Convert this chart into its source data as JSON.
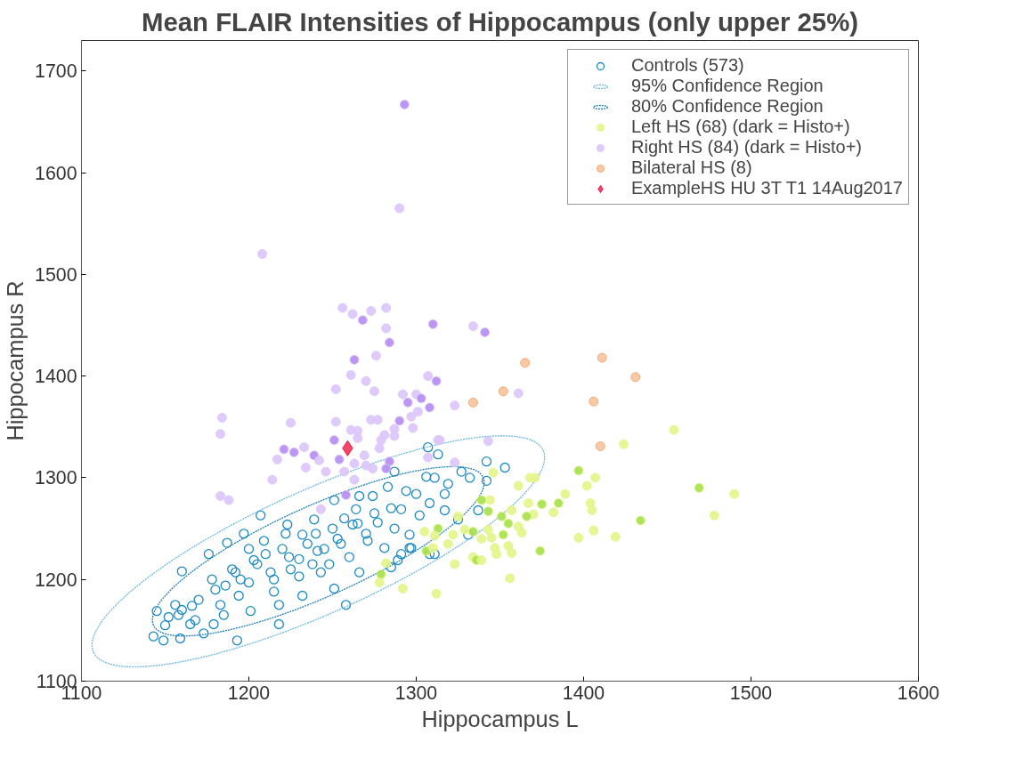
{
  "chart_data": {
    "type": "scatter",
    "title": "Mean FLAIR Intensities of Hippocampus (only upper 25%)",
    "xlabel": "Hippocampus L",
    "ylabel": "Hippocampus R",
    "xlim": [
      1100,
      1600
    ],
    "ylim": [
      1100,
      1730
    ],
    "xticks": [
      1100,
      1200,
      1300,
      1400,
      1500,
      1600
    ],
    "yticks": [
      1100,
      1200,
      1300,
      1400,
      1500,
      1600,
      1700
    ],
    "grid": false,
    "legend": "top right",
    "series": [
      {
        "name": "Controls (573)",
        "marker": "circle",
        "color": "#1b8ac4",
        "x": [
          1143,
          1149,
          1145,
          1152,
          1159,
          1160,
          1156,
          1166,
          1165,
          1173,
          1176,
          1179,
          1183,
          1186,
          1187,
          1193,
          1197,
          1192,
          1194,
          1201,
          1203,
          1200,
          1209,
          1213,
          1215,
          1218,
          1223,
          1224,
          1230,
          1232,
          1232,
          1239,
          1241,
          1243,
          1251,
          1251,
          1253,
          1260,
          1264,
          1266,
          1266,
          1271,
          1274,
          1277,
          1281,
          1283,
          1287,
          1287,
          1289,
          1291,
          1294,
          1296,
          1300,
          1302,
          1306,
          1308,
          1311,
          1311,
          1317,
          1319,
          1327,
          1332,
          1325,
          1331,
          1218,
          1285,
          1297,
          1258,
          1262,
          1207,
          1307,
          1313,
          1342,
          1353,
          1342,
          1337,
          1317,
          1308,
          1291,
          1296,
          1205,
          1210,
          1220,
          1225,
          1235,
          1245,
          1250,
          1215,
          1195,
          1180,
          1170,
          1160,
          1230,
          1240,
          1255,
          1265,
          1275,
          1200,
          1190,
          1178,
          1150,
          1158,
          1168,
          1185,
          1222,
          1238,
          1248,
          1270,
          1285,
          1257
        ],
        "values": [
          1144,
          1140,
          1169,
          1163,
          1142,
          1208,
          1175,
          1174,
          1156,
          1147,
          1225,
          1156,
          1175,
          1194,
          1236,
          1140,
          1245,
          1207,
          1184,
          1169,
          1219,
          1197,
          1238,
          1207,
          1188,
          1175,
          1254,
          1222,
          1203,
          1244,
          1184,
          1259,
          1228,
          1207,
          1191,
          1278,
          1240,
          1222,
          1269,
          1282,
          1207,
          1238,
          1282,
          1256,
          1231,
          1291,
          1306,
          1250,
          1219,
          1269,
          1287,
          1244,
          1284,
          1263,
          1301,
          1275,
          1300,
          1225,
          1284,
          1294,
          1306,
          1300,
          1259,
          1244,
          1156,
          1212,
          1231,
          1175,
          1254,
          1263,
          1330,
          1323,
          1316,
          1310,
          1297,
          1268,
          1268,
          1225,
          1225,
          1231,
          1215,
          1225,
          1230,
          1210,
          1235,
          1230,
          1250,
          1200,
          1200,
          1190,
          1180,
          1170,
          1220,
          1245,
          1235,
          1255,
          1265,
          1230,
          1210,
          1200,
          1155,
          1165,
          1160,
          1165,
          1245,
          1215,
          1215,
          1245,
          1270,
          1260
        ]
      },
      {
        "name": "95% Confidence Region",
        "type": "line",
        "line_style": "dotted",
        "color": "#6ab8e4"
      },
      {
        "name": "80% Confidence Region",
        "type": "line",
        "line_style": "dotted",
        "color": "#1b7fb8"
      },
      {
        "name": "Left HS (68) (dark = Histo+)",
        "marker": "circle",
        "color": "#e3f589",
        "x": [
          1346,
          1361,
          1368,
          1371,
          1397,
          1407,
          1402,
          1389,
          1385,
          1375,
          1367,
          1404,
          1405,
          1382,
          1370,
          1366,
          1351,
          1357,
          1355,
          1344,
          1339,
          1343,
          1325,
          1361,
          1363,
          1352,
          1343,
          1339,
          1345,
          1334,
          1329,
          1322,
          1313,
          1305,
          1311,
          1319,
          1306,
          1310,
          1347,
          1355,
          1357,
          1348,
          1334,
          1336,
          1339,
          1323,
          1374,
          1397,
          1406,
          1419,
          1434,
          1424,
          1454,
          1469,
          1478,
          1282,
          1279,
          1278,
          1292,
          1312,
          1356,
          1490
        ],
        "values": [
          1305,
          1292,
          1300,
          1300,
          1307,
          1300,
          1292,
          1284,
          1275,
          1274,
          1275,
          1275,
          1268,
          1266,
          1264,
          1262,
          1262,
          1268,
          1255,
          1278,
          1278,
          1267,
          1262,
          1252,
          1246,
          1244,
          1249,
          1240,
          1241,
          1247,
          1249,
          1244,
          1250,
          1247,
          1243,
          1235,
          1228,
          1231,
          1231,
          1233,
          1226,
          1225,
          1222,
          1219,
          1219,
          1215,
          1228,
          1241,
          1248,
          1242,
          1258,
          1333,
          1347,
          1290,
          1263,
          1216,
          1205,
          1197,
          1191,
          1186,
          1201,
          1284
        ],
        "colors": [
          "#e3f589",
          "#e3f589",
          "#e3f589",
          "#e3f589",
          "#a6e04a",
          "#e3f589",
          "#e3f589",
          "#e3f589",
          "#a6e04a",
          "#a6e04a",
          "#e3f589",
          "#e3f589",
          "#e3f589",
          "#e3f589",
          "#e3f589",
          "#a6e04a",
          "#a6e04a",
          "#e3f589",
          "#a6e04a",
          "#e3f589",
          "#a6e04a",
          "#a6e04a",
          "#e3f589",
          "#e3f589",
          "#e3f589",
          "#a6e04a",
          "#e3f589",
          "#e3f589",
          "#e3f589",
          "#a6e04a",
          "#e3f589",
          "#e3f589",
          "#a6e04a",
          "#e3f589",
          "#e3f589",
          "#e3f589",
          "#a6e04a",
          "#e3f589",
          "#e3f589",
          "#e3f589",
          "#e3f589",
          "#e3f589",
          "#e3f589",
          "#a6e04a",
          "#e3f589",
          "#e3f589",
          "#a6e04a",
          "#e3f589",
          "#e3f589",
          "#e3f589",
          "#a6e04a",
          "#e3f589",
          "#e3f589",
          "#a6e04a",
          "#e3f589",
          "#e3f589",
          "#a6e04a",
          "#e3f589",
          "#e3f589",
          "#e3f589",
          "#e3f589",
          "#e3f589"
        ]
      },
      {
        "name": "Right HS (84) (dark = Histo+)",
        "marker": "circle",
        "color": "#dcc5fb",
        "x": [
          1208,
          1256,
          1262,
          1268,
          1273,
          1282,
          1310,
          1334,
          1341,
          1282,
          1284,
          1263,
          1276,
          1261,
          1270,
          1275,
          1252,
          1307,
          1312,
          1292,
          1300,
          1295,
          1303,
          1308,
          1323,
          1301,
          1297,
          1290,
          1298,
          1287,
          1281,
          1287,
          1184,
          1183,
          1225,
          1252,
          1273,
          1277,
          1261,
          1265,
          1265,
          1279,
          1251,
          1221,
          1227,
          1233,
          1239,
          1242,
          1217,
          1234,
          1246,
          1254,
          1257,
          1263,
          1269,
          1270,
          1274,
          1278,
          1284,
          1282,
          1314,
          1323,
          1307,
          1214,
          1263,
          1183,
          1188,
          1243,
          1258,
          1361,
          1343,
          1313,
          1293,
          1290
        ],
        "values": [
          1520,
          1467,
          1461,
          1455,
          1464,
          1467,
          1451,
          1449,
          1443,
          1447,
          1433,
          1416,
          1420,
          1401,
          1395,
          1385,
          1387,
          1400,
          1395,
          1382,
          1382,
          1374,
          1378,
          1369,
          1371,
          1365,
          1360,
          1356,
          1349,
          1348,
          1342,
          1341,
          1359,
          1343,
          1354,
          1355,
          1357,
          1357,
          1347,
          1346,
          1339,
          1337,
          1337,
          1328,
          1325,
          1330,
          1322,
          1317,
          1318,
          1310,
          1306,
          1318,
          1306,
          1314,
          1322,
          1312,
          1309,
          1329,
          1316,
          1309,
          1337,
          1315,
          1320,
          1298,
          1298,
          1282,
          1278,
          1269,
          1283,
          1383,
          1336,
          1337,
          1667,
          1565
        ],
        "colors": [
          "#dcc5fb",
          "#dcc5fb",
          "#dcc5fb",
          "#b48cf2",
          "#dcc5fb",
          "#dcc5fb",
          "#b48cf2",
          "#dcc5fb",
          "#b48cf2",
          "#dcc5fb",
          "#b48cf2",
          "#b48cf2",
          "#dcc5fb",
          "#dcc5fb",
          "#dcc5fb",
          "#dcc5fb",
          "#dcc5fb",
          "#dcc5fb",
          "#b48cf2",
          "#dcc5fb",
          "#dcc5fb",
          "#b48cf2",
          "#b48cf2",
          "#b48cf2",
          "#dcc5fb",
          "#dcc5fb",
          "#dcc5fb",
          "#b48cf2",
          "#dcc5fb",
          "#dcc5fb",
          "#dcc5fb",
          "#dcc5fb",
          "#dcc5fb",
          "#dcc5fb",
          "#dcc5fb",
          "#dcc5fb",
          "#dcc5fb",
          "#dcc5fb",
          "#dcc5fb",
          "#dcc5fb",
          "#dcc5fb",
          "#dcc5fb",
          "#b48cf2",
          "#b48cf2",
          "#b48cf2",
          "#dcc5fb",
          "#b48cf2",
          "#dcc5fb",
          "#dcc5fb",
          "#dcc5fb",
          "#dcc5fb",
          "#b48cf2",
          "#dcc5fb",
          "#dcc5fb",
          "#dcc5fb",
          "#dcc5fb",
          "#dcc5fb",
          "#dcc5fb",
          "#b48cf2",
          "#b48cf2",
          "#dcc5fb",
          "#dcc5fb",
          "#dcc5fb",
          "#dcc5fb",
          "#dcc5fb",
          "#dcc5fb",
          "#dcc5fb",
          "#dcc5fb",
          "#b48cf2",
          "#dcc5fb",
          "#dcc5fb",
          "#dcc5fb",
          "#b48cf2",
          "#dcc5fb"
        ]
      },
      {
        "name": "Bilateral HS (8)",
        "marker": "circle",
        "color": "#f0a56e",
        "x": [
          1334,
          1352,
          1365,
          1411,
          1431,
          1406,
          1410
        ],
        "values": [
          1374,
          1385,
          1413,
          1418,
          1399,
          1375,
          1331
        ],
        "colors": [
          "#f8c29c",
          "#f8c29c",
          "#f8c29c",
          "#f8c29c",
          "#f8c29c",
          "#f8c29c",
          "#f8c29c"
        ]
      },
      {
        "name": "ExampleHS HU 3T T1 14Aug2017",
        "marker": "diamond",
        "color": "#e01040",
        "x": [
          1259
        ],
        "values": [
          1329
        ],
        "colors": [
          "#f0335a"
        ]
      }
    ]
  }
}
